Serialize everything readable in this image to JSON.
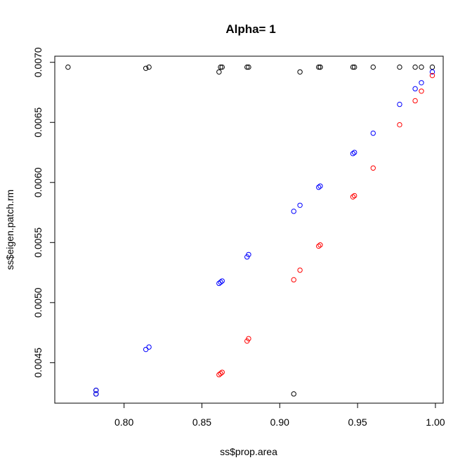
{
  "chart_data": {
    "type": "scatter",
    "title": "Alpha= 1",
    "xlabel": "ss$prop.area",
    "ylabel": "ss$eigen.patch.rm",
    "xlim": [
      0.7555,
      1.005
    ],
    "ylim": [
      0.004163,
      0.007051
    ],
    "x_ticks": [
      0.8,
      0.85,
      0.9,
      0.95,
      1.0
    ],
    "x_tick_labels": [
      "0.80",
      "0.85",
      "0.90",
      "0.95",
      "1.00"
    ],
    "y_ticks": [
      0.0045,
      0.005,
      0.0055,
      0.006,
      0.0065,
      0.007
    ],
    "y_tick_labels": [
      "0.0045",
      "0.0050",
      "0.0055",
      "0.0060",
      "0.0065",
      "0.0070"
    ],
    "grid": false,
    "legend": "none",
    "series": [
      {
        "color": "#000000",
        "points": [
          [
            0.764,
            0.00696
          ],
          [
            0.814,
            0.00695
          ],
          [
            0.816,
            0.00696
          ],
          [
            0.861,
            0.00692
          ],
          [
            0.862,
            0.00696
          ],
          [
            0.863,
            0.00696
          ],
          [
            0.879,
            0.00696
          ],
          [
            0.88,
            0.00696
          ],
          [
            0.913,
            0.00692
          ],
          [
            0.925,
            0.00696
          ],
          [
            0.926,
            0.00696
          ],
          [
            0.926,
            0.00696
          ],
          [
            0.947,
            0.00696
          ],
          [
            0.948,
            0.00696
          ],
          [
            0.96,
            0.00696
          ],
          [
            0.977,
            0.00696
          ],
          [
            0.987,
            0.00696
          ],
          [
            0.991,
            0.00696
          ],
          [
            0.998,
            0.00696
          ],
          [
            0.782,
            0.00427
          ],
          [
            0.782,
            0.00424
          ],
          [
            0.909,
            0.00424
          ]
        ]
      },
      {
        "color": "#0000ff",
        "points": [
          [
            0.782,
            0.00427
          ],
          [
            0.782,
            0.00424
          ],
          [
            0.814,
            0.00461
          ],
          [
            0.816,
            0.00463
          ],
          [
            0.861,
            0.00516
          ],
          [
            0.862,
            0.00517
          ],
          [
            0.863,
            0.00518
          ],
          [
            0.879,
            0.00538
          ],
          [
            0.88,
            0.0054
          ],
          [
            0.909,
            0.00576
          ],
          [
            0.913,
            0.00581
          ],
          [
            0.925,
            0.00596
          ],
          [
            0.926,
            0.00597
          ],
          [
            0.947,
            0.00624
          ],
          [
            0.948,
            0.00625
          ],
          [
            0.96,
            0.00641
          ],
          [
            0.977,
            0.00665
          ],
          [
            0.987,
            0.00678
          ],
          [
            0.991,
            0.00683
          ],
          [
            0.998,
            0.00692
          ]
        ]
      },
      {
        "color": "#ff0000",
        "points": [
          [
            0.861,
            0.0044
          ],
          [
            0.862,
            0.00441
          ],
          [
            0.863,
            0.00442
          ],
          [
            0.879,
            0.00468
          ],
          [
            0.88,
            0.0047
          ],
          [
            0.909,
            0.00519
          ],
          [
            0.913,
            0.00527
          ],
          [
            0.925,
            0.00547
          ],
          [
            0.926,
            0.00548
          ],
          [
            0.947,
            0.00588
          ],
          [
            0.948,
            0.00589
          ],
          [
            0.96,
            0.00612
          ],
          [
            0.977,
            0.00648
          ],
          [
            0.987,
            0.00668
          ],
          [
            0.991,
            0.00676
          ],
          [
            0.998,
            0.00689
          ]
        ]
      }
    ]
  }
}
